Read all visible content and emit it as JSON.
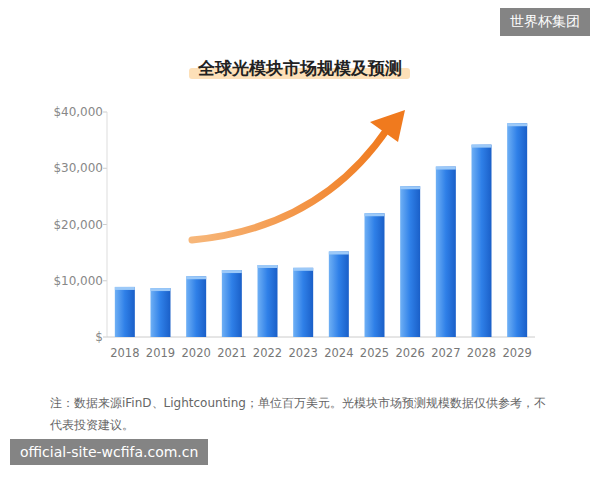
{
  "chart_data": {
    "type": "bar",
    "title": "全球光模块市场规模及预测",
    "categories": [
      "2018",
      "2019",
      "2020",
      "2021",
      "2022",
      "2023",
      "2024",
      "2025",
      "2026",
      "2027",
      "2028",
      "2029"
    ],
    "values": [
      8900,
      8700,
      10800,
      11900,
      12800,
      12300,
      15200,
      22000,
      26800,
      30300,
      34200,
      38000
    ],
    "color": "#2f80e8",
    "ylim": [
      0,
      40000
    ],
    "yticks": [
      {
        "value": 0,
        "label": "$"
      },
      {
        "value": 10000,
        "label": "$10,000"
      },
      {
        "value": 20000,
        "label": "$20,000"
      },
      {
        "value": 30000,
        "label": "$30,000"
      },
      {
        "value": 40000,
        "label": "$40,000"
      }
    ],
    "grid": false,
    "annotations": [
      "注：数据来源iFinD、Lightcounting；单位百万美元。光模块市场预测规模数据仅供参考，不代表投资建议。",
      "世界杯集团",
      "official-site-wcfifa.com.cn"
    ]
  }
}
